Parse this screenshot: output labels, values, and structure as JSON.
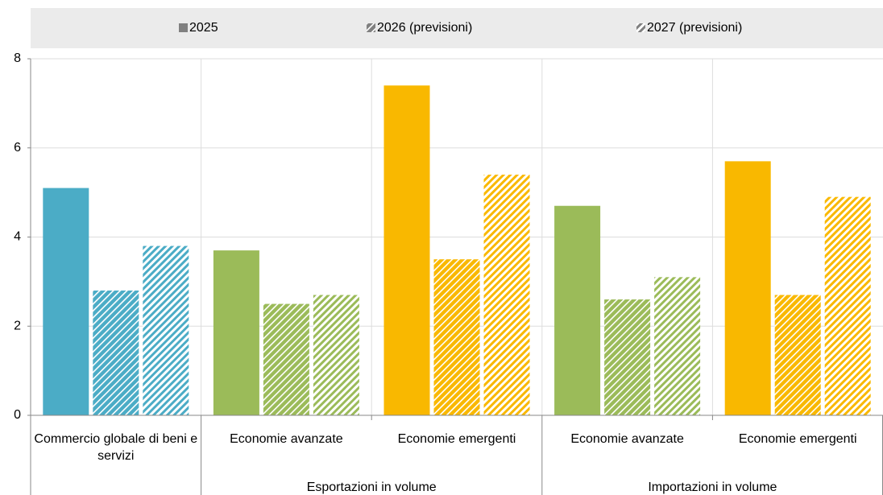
{
  "chart_data": {
    "type": "bar",
    "categories": [
      "Commercio globale di beni e servizi",
      "Economie avanzate",
      "Economie emergenti",
      "Economie avanzate",
      "Economie emergenti"
    ],
    "category_colors": [
      "#4bacc6",
      "#9bbb59",
      "#f9b800",
      "#9bbb59",
      "#f9b800"
    ],
    "groups": [
      {
        "label": "Esportazioni in volume",
        "from": 1,
        "to": 2
      },
      {
        "label": "Importazioni in volume",
        "from": 3,
        "to": 4
      }
    ],
    "series": [
      {
        "name": "2025",
        "color": "#808080",
        "pattern": "solid",
        "values": [
          5.1,
          3.7,
          7.4,
          4.7,
          5.7
        ]
      },
      {
        "name": "2026 (previsioni)",
        "color": "#808080",
        "pattern": "dense-hatch",
        "values": [
          2.8,
          2.5,
          3.5,
          2.6,
          2.7
        ]
      },
      {
        "name": "2027 (previsioni)",
        "color": "#808080",
        "pattern": "light-hatch",
        "values": [
          3.8,
          2.7,
          5.4,
          3.1,
          4.9
        ]
      }
    ],
    "ylim": [
      0,
      8
    ],
    "yticks": [
      0,
      2,
      4,
      6,
      8
    ],
    "grid": true,
    "legend": "top"
  }
}
